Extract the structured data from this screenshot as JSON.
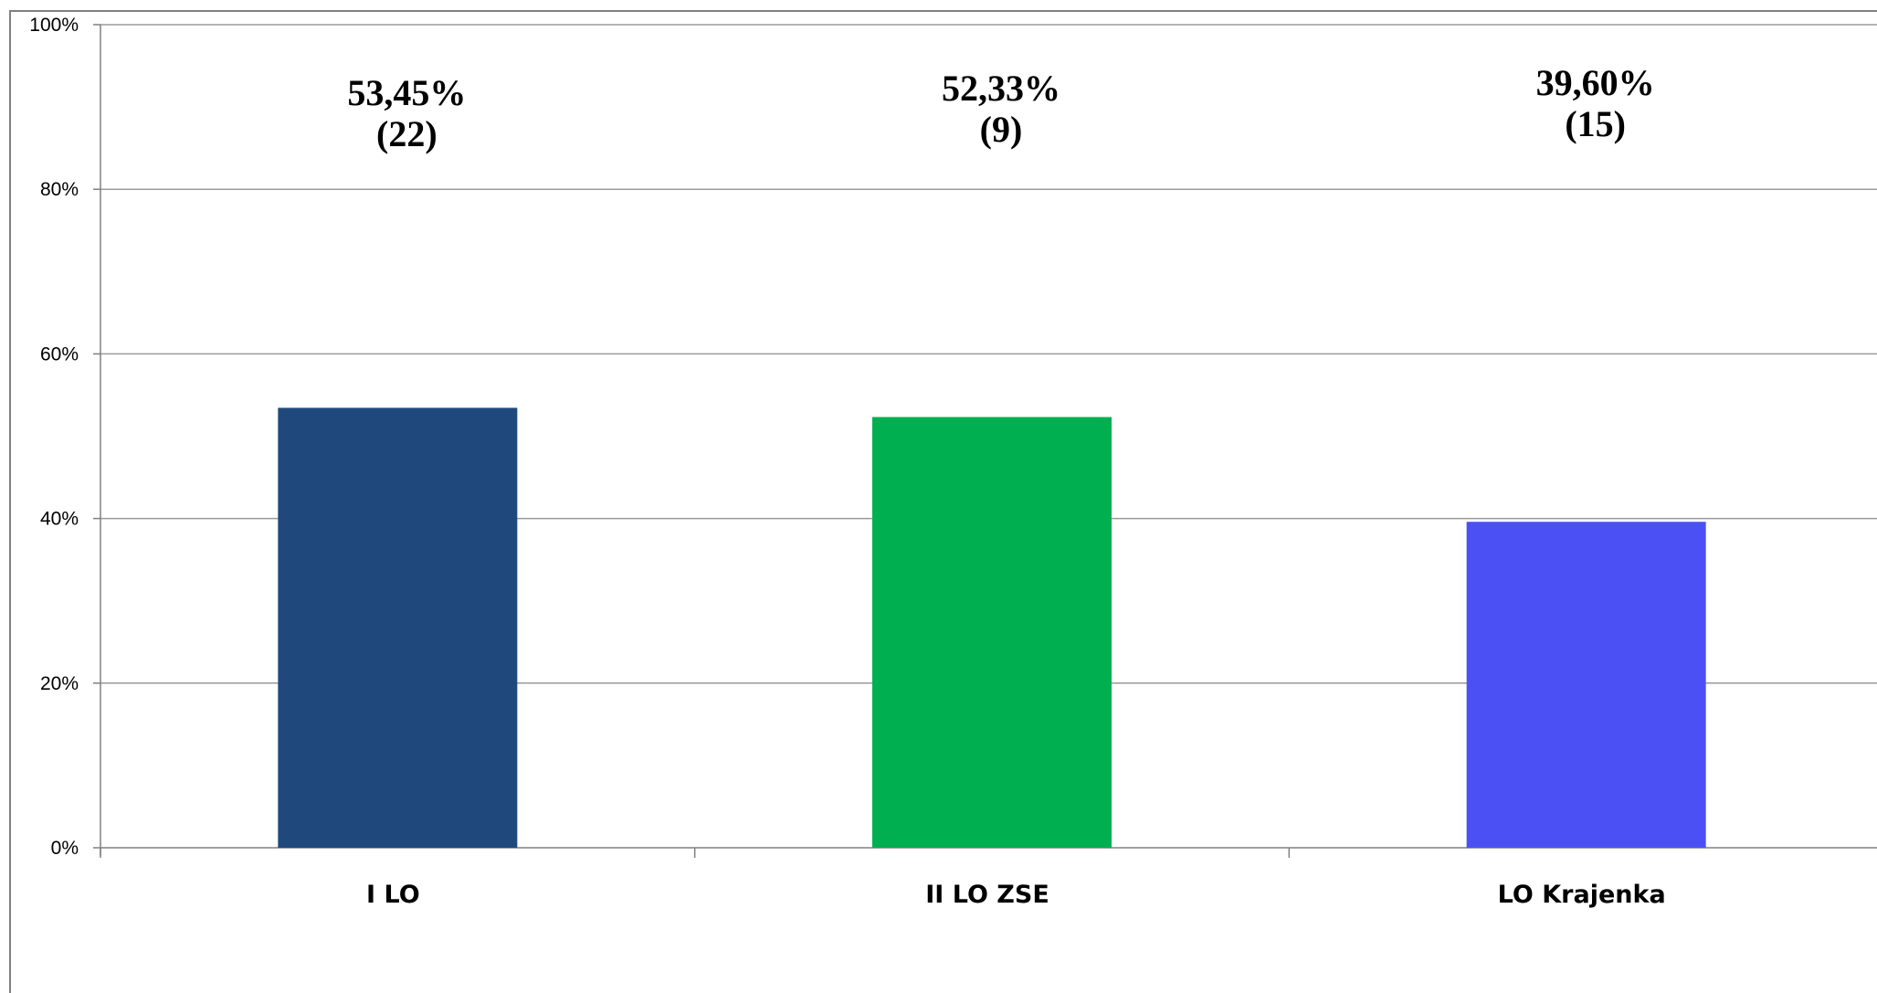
{
  "chart_data": {
    "type": "bar",
    "categories": [
      "I LO",
      "II LO ZSE",
      "LO Krajenka"
    ],
    "values": [
      53.45,
      52.33,
      39.6
    ],
    "value_labels": [
      "53,45%",
      "52,33%",
      "39,60%"
    ],
    "count_labels": [
      "(22)",
      "(9)",
      "(15)"
    ],
    "colors": [
      "#1f497d",
      "#00b050",
      "#4b50f5"
    ],
    "ylim": [
      0,
      100
    ],
    "yticks": [
      0,
      20,
      40,
      60,
      80,
      100
    ],
    "ytick_labels": [
      "0%",
      "20%",
      "40%",
      "60%",
      "80%",
      "100%"
    ],
    "grid": true,
    "legend": "none"
  }
}
